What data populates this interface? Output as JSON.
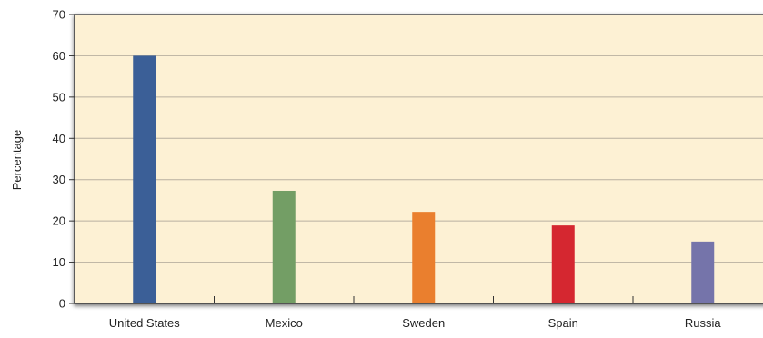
{
  "chart_data": {
    "type": "bar",
    "title": "",
    "xlabel": "",
    "ylabel": "Percentage",
    "ylim": [
      0,
      70
    ],
    "yticks": [
      0,
      10,
      20,
      30,
      40,
      50,
      60,
      70
    ],
    "grid": true,
    "categories": [
      "United States",
      "Mexico",
      "Sweden",
      "Spain",
      "Russia"
    ],
    "values": [
      60,
      27.3,
      22.2,
      18.9,
      15
    ],
    "bar_colors": [
      "#3b5f97",
      "#739e65",
      "#ea7f2e",
      "#d52730",
      "#7574aa"
    ],
    "plot_background": "#fdf1d4",
    "plot_border": "#555555",
    "grid_color": "#b8b0a0"
  }
}
